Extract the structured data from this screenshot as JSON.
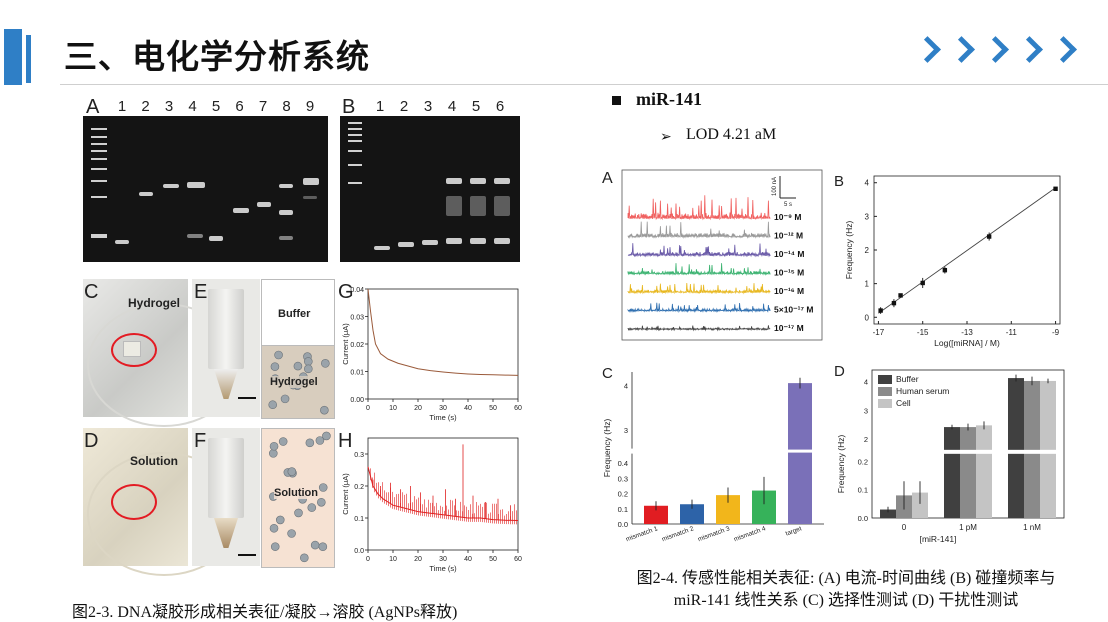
{
  "slide": {
    "title": "三、电化学分析系统",
    "accent_color": "#2f7fc6"
  },
  "left_figure": {
    "gel_a": {
      "letter": "A",
      "lanes": [
        "1",
        "2",
        "3",
        "4",
        "5",
        "6",
        "7",
        "8",
        "9"
      ]
    },
    "gel_b": {
      "letter": "B",
      "lanes": [
        "1",
        "2",
        "3",
        "4",
        "5",
        "6"
      ]
    },
    "panel_c": {
      "letter": "C",
      "label": "Hydrogel"
    },
    "panel_d": {
      "letter": "D",
      "label": "Solution"
    },
    "panel_e": {
      "letter": "E",
      "buffer_label": "Buffer",
      "hydrogel_label": "Hydrogel"
    },
    "panel_f": {
      "letter": "F",
      "solution_label": "Solution"
    },
    "panel_g": {
      "letter": "G",
      "ylabel": "Current (μA)",
      "xlabel": "Time (s)",
      "yticks": [
        "0.04",
        "0.03",
        "0.02",
        "0.01",
        "0.00"
      ],
      "xticks": [
        "0",
        "10",
        "20",
        "30",
        "40",
        "50",
        "60"
      ]
    },
    "panel_h": {
      "letter": "H",
      "ylabel": "Current (μA)",
      "xlabel": "Time (s)",
      "yticks": [
        "0.3",
        "0.2",
        "0.1",
        "0.0"
      ],
      "xticks": [
        "0",
        "10",
        "20",
        "30",
        "40",
        "50",
        "60"
      ]
    },
    "caption": "图2-3. DNA凝胶形成相关表征/凝胶→溶胶 (AgNPs释放)"
  },
  "right_header": {
    "bullet_title": "miR-141",
    "arrow_glyph": "➢",
    "lod_text": "LOD 4.21 aM"
  },
  "right_figure": {
    "panel_a": {
      "letter": "A",
      "scale_current": "100 nA",
      "scale_time": "5 s",
      "traces": [
        {
          "label": "10⁻⁹ M",
          "color": "#f0605f"
        },
        {
          "label": "10⁻¹² M",
          "color": "#9a9a9a"
        },
        {
          "label": "10⁻¹⁴ M",
          "color": "#6a5aa8"
        },
        {
          "label": "10⁻¹⁵ M",
          "color": "#3cb371"
        },
        {
          "label": "10⁻¹⁶ M",
          "color": "#e8b820"
        },
        {
          "label": "5×10⁻¹⁷ M",
          "color": "#2f6fb0"
        },
        {
          "label": "10⁻¹⁷ M",
          "color": "#444444"
        }
      ]
    },
    "caption_line1": "图2-4. 传感性能相关表征: (A) 电流-时间曲线 (B) 碰撞频率与",
    "caption_line2": "miR-141 线性关系 (C) 选择性测试 (D) 干扰性测试"
  },
  "chart_data": [
    {
      "id": "G",
      "type": "line",
      "xlabel": "Time (s)",
      "ylabel": "Current (μA)",
      "xlim": [
        0,
        60
      ],
      "ylim": [
        0,
        0.04
      ],
      "series": [
        {
          "color": "#9a5a3a",
          "x": [
            0,
            1,
            2,
            3,
            5,
            8,
            12,
            16,
            20,
            25,
            30,
            35,
            40,
            45,
            50,
            55,
            60
          ],
          "y": [
            0.04,
            0.032,
            0.025,
            0.02,
            0.0165,
            0.0145,
            0.013,
            0.012,
            0.011,
            0.0103,
            0.0098,
            0.0094,
            0.0091,
            0.0089,
            0.0088,
            0.0087,
            0.0086
          ]
        }
      ]
    },
    {
      "id": "H",
      "type": "line",
      "xlabel": "Time (s)",
      "ylabel": "Current (μA)",
      "xlim": [
        0,
        60
      ],
      "ylim": [
        0,
        0.35
      ],
      "series": [
        {
          "color": "#e02020",
          "x": [
            0,
            2,
            4,
            6,
            8,
            10,
            15,
            20,
            25,
            30,
            35,
            40,
            45,
            50,
            55,
            60
          ],
          "y": [
            0.26,
            0.2,
            0.175,
            0.16,
            0.15,
            0.14,
            0.13,
            0.12,
            0.115,
            0.11,
            0.105,
            0.1,
            0.1,
            0.095,
            0.093,
            0.092
          ]
        }
      ],
      "spikes": [
        {
          "x": 2,
          "y": 0.22
        },
        {
          "x": 5,
          "y": 0.2
        },
        {
          "x": 9,
          "y": 0.21
        },
        {
          "x": 13,
          "y": 0.19
        },
        {
          "x": 17,
          "y": 0.2
        },
        {
          "x": 21,
          "y": 0.18
        },
        {
          "x": 26,
          "y": 0.17
        },
        {
          "x": 31,
          "y": 0.19
        },
        {
          "x": 35,
          "y": 0.16
        },
        {
          "x": 38,
          "y": 0.33
        },
        {
          "x": 42,
          "y": 0.17
        },
        {
          "x": 47,
          "y": 0.15
        },
        {
          "x": 52,
          "y": 0.16
        },
        {
          "x": 57,
          "y": 0.14
        }
      ]
    },
    {
      "id": "B",
      "type": "scatter",
      "xlabel": "Log([miRNA] / M)",
      "ylabel": "Frequency (Hz)",
      "xlim": [
        -17.2,
        -8.8
      ],
      "ylim": [
        -0.2,
        4.2
      ],
      "xticks": [
        -17,
        -15,
        -13,
        -11,
        -9
      ],
      "yticks": [
        0,
        1,
        2,
        3,
        4
      ],
      "points": [
        {
          "x": -16.9,
          "y": 0.2,
          "err": 0.1
        },
        {
          "x": -16.3,
          "y": 0.42,
          "err": 0.12
        },
        {
          "x": -16.0,
          "y": 0.65,
          "err": 0.05
        },
        {
          "x": -15.0,
          "y": 1.02,
          "err": 0.15
        },
        {
          "x": -14.0,
          "y": 1.4,
          "err": 0.1
        },
        {
          "x": -12.0,
          "y": 2.4,
          "err": 0.12
        },
        {
          "x": -9.0,
          "y": 3.82,
          "err": 0.05
        }
      ],
      "fit": {
        "x": [
          -17,
          -9
        ],
        "y": [
          0.12,
          3.85
        ]
      }
    },
    {
      "id": "C",
      "type": "bar",
      "ylabel": "Frequency (Hz)",
      "categories": [
        "mismatch 1",
        "mismatch 2",
        "mismatch 3",
        "mismatch 4",
        "target"
      ],
      "values": [
        0.12,
        0.13,
        0.19,
        0.22,
        4.05
      ],
      "errors": [
        0.03,
        0.03,
        0.05,
        0.09,
        0.12
      ],
      "colors": [
        "#e11d22",
        "#2d63a8",
        "#f2b61b",
        "#36b25a",
        "#7a70b8"
      ],
      "axis_break": {
        "low": [
          0,
          0.45
        ],
        "high": [
          2.6,
          4.3
        ]
      },
      "yticks_low": [
        0.0,
        0.1,
        0.2,
        0.3,
        0.4
      ],
      "yticks_high": [
        3,
        4
      ]
    },
    {
      "id": "D",
      "type": "bar",
      "xlabel": "[miR-141]",
      "ylabel": "Frequency (Hz)",
      "categories": [
        "0",
        "1 pM",
        "1 nM"
      ],
      "series": [
        {
          "name": "Buffer",
          "color": "#404040",
          "values": [
            0.03,
            2.42,
            4.12
          ],
          "errors": [
            0.01,
            0.08,
            0.12
          ]
        },
        {
          "name": "Human serum",
          "color": "#8a8a8a",
          "values": [
            0.08,
            2.42,
            4.02
          ],
          "errors": [
            0.05,
            0.12,
            0.15
          ]
        },
        {
          "name": "Cell",
          "color": "#c4c4c4",
          "values": [
            0.09,
            2.48,
            4.02
          ],
          "errors": [
            0.04,
            0.14,
            0.08
          ]
        }
      ],
      "axis_break": {
        "low": [
          0,
          0.22
        ],
        "high": [
          1.7,
          4.4
        ]
      },
      "yticks_low": [
        0.0,
        0.1,
        0.2
      ],
      "yticks_high": [
        2,
        3,
        4
      ],
      "legend": "top-left"
    }
  ]
}
